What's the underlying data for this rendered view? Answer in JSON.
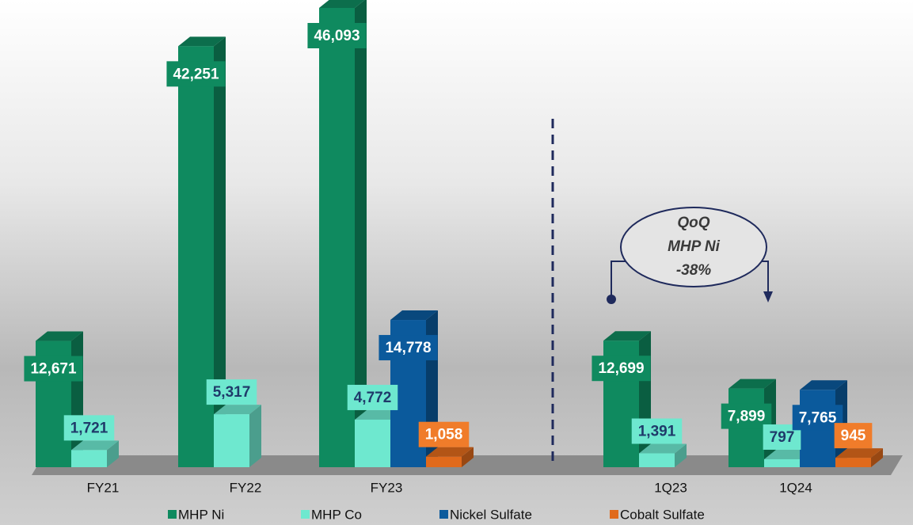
{
  "chart_data": {
    "type": "bar3d",
    "categories": [
      "FY21",
      "FY22",
      "FY23",
      "1Q23",
      "1Q24"
    ],
    "series": [
      {
        "name": "MHP Ni",
        "color": "#0f8a5f",
        "values": [
          12671,
          42251,
          46093,
          12699,
          7899
        ],
        "value_labels": [
          "12,671",
          "42,251",
          "46,093",
          "12,699",
          "7,899"
        ]
      },
      {
        "name": "MHP Co",
        "color": "#6ee8cf",
        "values": [
          1721,
          5317,
          4772,
          1391,
          797
        ],
        "value_labels": [
          "1,721",
          "5,317",
          "4,772",
          "1,391",
          "797"
        ]
      },
      {
        "name": "Nickel Sulfate",
        "color": "#0b5a9c",
        "values": [
          null,
          null,
          14778,
          null,
          7765
        ],
        "value_labels": [
          null,
          null,
          "14,778",
          null,
          "7,765"
        ]
      },
      {
        "name": "Cobalt Sulfate",
        "color": "#e06a1c",
        "values": [
          null,
          null,
          1058,
          null,
          945
        ],
        "value_labels": [
          null,
          null,
          "1,058",
          null,
          "945"
        ]
      }
    ],
    "annotation": [
      "QoQ",
      "MHP Ni",
      "-38%"
    ]
  }
}
